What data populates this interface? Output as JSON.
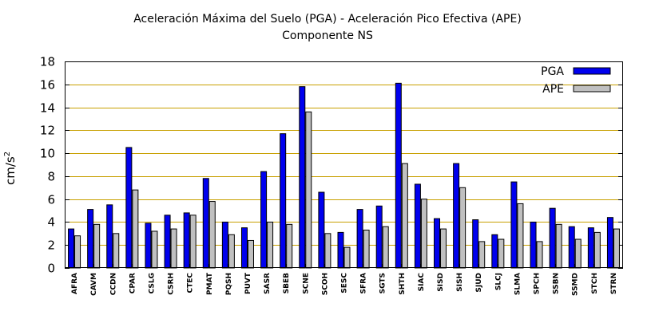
{
  "chart_data": {
    "type": "bar",
    "title_line1": "Aceleración Máxima del Suelo (PGA) -  Aceleración Pico Efectiva (APE)",
    "title_line2": "Componente NS",
    "ylabel_base": "cm/s",
    "ylabel_exp": "2",
    "xlabel": "",
    "ylim": [
      0,
      18
    ],
    "yticks": [
      0,
      2,
      4,
      6,
      8,
      10,
      12,
      14,
      16,
      18
    ],
    "grid": true,
    "legend_position": "top-right",
    "categories": [
      "AFRA",
      "CAVM",
      "CCDN",
      "CPAR",
      "CSLG",
      "CSRH",
      "CTEC",
      "PMAT",
      "PQSH",
      "PUVT",
      "SASR",
      "SBEB",
      "SCNE",
      "SCOH",
      "SESC",
      "SFRA",
      "SGTS",
      "SHTH",
      "SIAC",
      "SISD",
      "SISH",
      "SJUD",
      "SLCJ",
      "SLMA",
      "SPCH",
      "SSBN",
      "SSMD",
      "STCH",
      "STRN"
    ],
    "series": [
      {
        "name": "PGA",
        "color": "#0000ee",
        "values": [
          3.4,
          5.1,
          5.5,
          10.5,
          3.9,
          4.6,
          4.8,
          7.8,
          4.0,
          3.5,
          8.4,
          11.7,
          15.8,
          6.6,
          3.1,
          5.1,
          5.4,
          16.1,
          7.3,
          4.3,
          9.1,
          4.2,
          2.9,
          7.5,
          4.0,
          5.2,
          3.6,
          3.5,
          4.4
        ]
      },
      {
        "name": "APE",
        "color": "#c0c0c0",
        "values": [
          2.8,
          3.8,
          3.0,
          6.8,
          3.2,
          3.4,
          4.6,
          5.8,
          2.9,
          2.4,
          4.0,
          3.8,
          13.6,
          3.0,
          1.8,
          3.3,
          3.6,
          9.1,
          6.0,
          3.4,
          7.0,
          2.3,
          2.5,
          5.6,
          2.3,
          3.8,
          2.5,
          3.1,
          3.4
        ]
      }
    ],
    "grid_color": "#c8a000"
  }
}
